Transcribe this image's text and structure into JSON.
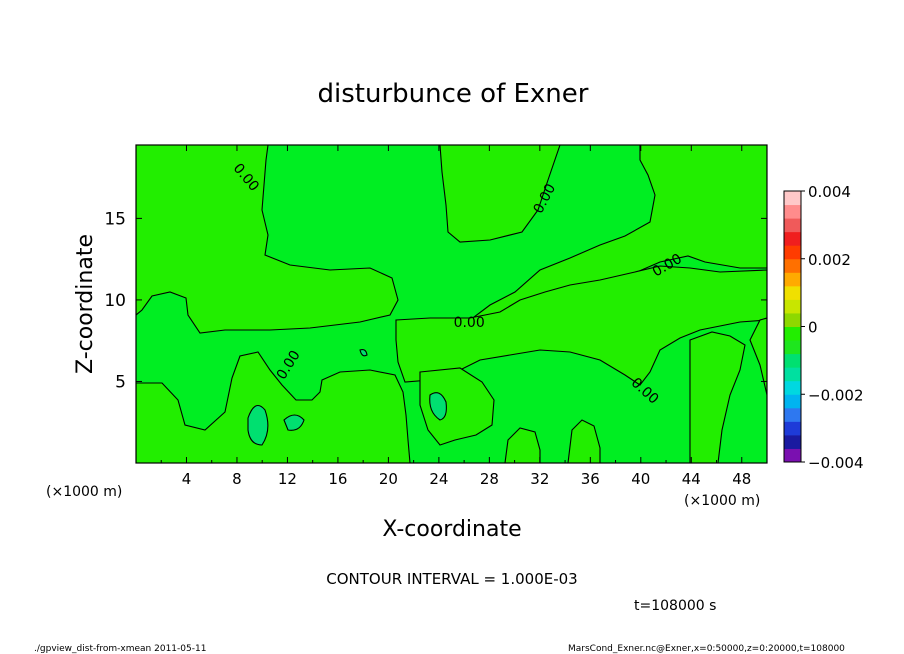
{
  "chart_data": {
    "type": "heatmap",
    "title": "disturbunce of Exner",
    "xlabel": "X-coordinate",
    "ylabel": "Z-coordinate",
    "x_unit": "(×1000 m)",
    "y_unit": "(×1000 m)",
    "xlim": [
      0,
      50
    ],
    "ylim": [
      0,
      19.5
    ],
    "x_ticks": [
      4,
      8,
      12,
      16,
      20,
      24,
      28,
      32,
      36,
      40,
      44,
      48
    ],
    "y_ticks": [
      5,
      10,
      15
    ],
    "contour_labels": [
      {
        "text": "0.00",
        "x": 8.7,
        "y": 17.5,
        "angle": 50
      },
      {
        "text": "0.00",
        "x": 32.4,
        "y": 16.2,
        "angle": -62
      },
      {
        "text": "0.00",
        "x": 42.1,
        "y": 12.1,
        "angle": -30
      },
      {
        "text": "0.00",
        "x": 26.4,
        "y": 8.6,
        "angle": 0
      },
      {
        "text": "0.00",
        "x": 12.1,
        "y": 6.0,
        "angle": -58
      },
      {
        "text": "0.00",
        "x": 40.3,
        "y": 4.4,
        "angle": 42
      }
    ],
    "colorbar": {
      "min": -0.004,
      "max": 0.004,
      "tick_labels": [
        "0.004",
        "0.002",
        "0",
        "−0.002",
        "−0.004"
      ],
      "tick_values": [
        0.004,
        0.002,
        0,
        -0.002,
        -0.004
      ],
      "colors": [
        "#7a10b0",
        "#1a1aa0",
        "#1e3bd8",
        "#2e78f0",
        "#00b4f0",
        "#00d8e0",
        "#00e0a0",
        "#00e070",
        "#1ee61e",
        "#22ee00",
        "#8ed800",
        "#c8e600",
        "#f0e000",
        "#ffaa00",
        "#ff7000",
        "#ff3c00",
        "#f01e1e",
        "#f05a5a",
        "#ff8c8c",
        "#ffc8c8"
      ]
    },
    "contour_interval_text": "CONTOUR INTERVAL = 1.000E-03",
    "time_text": "t=108000 s"
  },
  "footer": {
    "left": "./gpview_dist-from-xmean  2011-05-11",
    "right": "MarsCond_Exner.nc@Exner,x=0:50000,z=0:20000,t=108000"
  },
  "colors": {
    "positive_fill": "#22ee00",
    "zero_fill": "#00ee22",
    "negative_fill": "#00e070"
  }
}
